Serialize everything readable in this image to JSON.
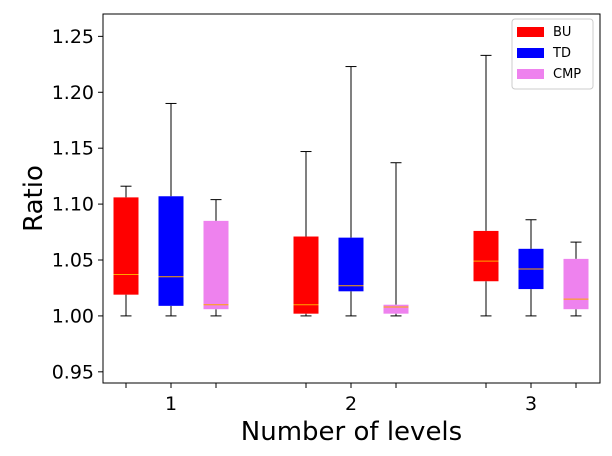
{
  "chart_data": {
    "type": "box",
    "title": "",
    "xlabel": "Number of levels",
    "ylabel": "Ratio",
    "categories": [
      "1",
      "2",
      "3"
    ],
    "ylim": [
      0.94,
      1.27
    ],
    "yticks": [
      "0.95",
      "1.00",
      "1.05",
      "1.10",
      "1.15",
      "1.20",
      "1.25"
    ],
    "legend_position": "top-right",
    "grid": false,
    "series": [
      {
        "name": "BU",
        "color": "#ff0000",
        "boxes": [
          {
            "min": 1.0,
            "q1": 1.019,
            "median": 1.037,
            "q3": 1.106,
            "max": 1.116
          },
          {
            "min": 1.0,
            "q1": 1.002,
            "median": 1.01,
            "q3": 1.071,
            "max": 1.147
          },
          {
            "min": 1.0,
            "q1": 1.031,
            "median": 1.049,
            "q3": 1.076,
            "max": 1.233
          }
        ]
      },
      {
        "name": "TD",
        "color": "#0000ff",
        "boxes": [
          {
            "min": 1.0,
            "q1": 1.009,
            "median": 1.035,
            "q3": 1.107,
            "max": 1.19
          },
          {
            "min": 1.0,
            "q1": 1.022,
            "median": 1.027,
            "q3": 1.07,
            "max": 1.223
          },
          {
            "min": 1.0,
            "q1": 1.024,
            "median": 1.042,
            "q3": 1.06,
            "max": 1.086
          }
        ]
      },
      {
        "name": "CMP",
        "color": "#ee82ee",
        "boxes": [
          {
            "min": 1.0,
            "q1": 1.006,
            "median": 1.01,
            "q3": 1.085,
            "max": 1.104
          },
          {
            "min": 1.0,
            "q1": 1.002,
            "median": 1.008,
            "q3": 1.01,
            "max": 1.137
          },
          {
            "min": 1.0,
            "q1": 1.006,
            "median": 1.015,
            "q3": 1.051,
            "max": 1.066
          }
        ]
      }
    ],
    "median_color": "#ffa500"
  }
}
